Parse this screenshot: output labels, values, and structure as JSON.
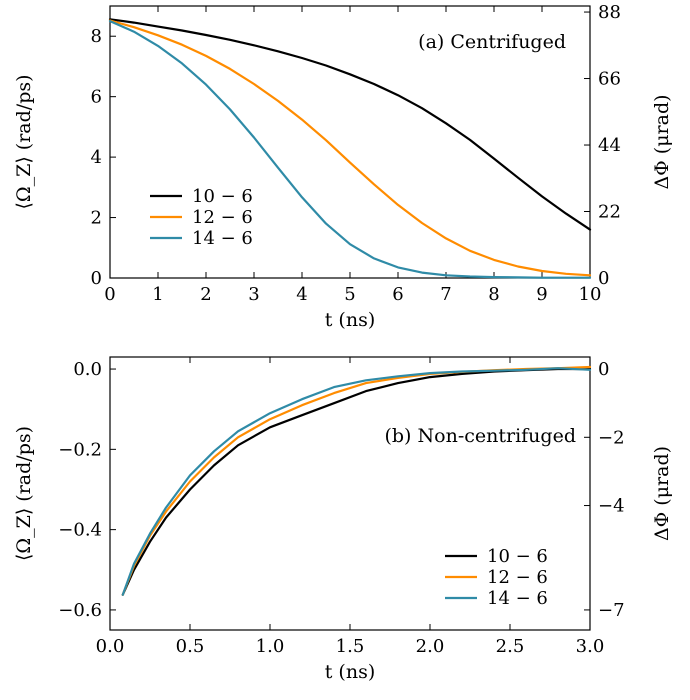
{
  "colors": {
    "s1": "#000000",
    "s2": "#ff8c00",
    "s3": "#2f8ba7"
  },
  "chart_data": [
    {
      "type": "line",
      "annotation": "(a) Centrifuged",
      "xlabel": "t (ns)",
      "ylabel": "⟨Ω_Z⟩ (rad/ps)",
      "y2label": "ΔΦ (μrad)",
      "xlim": [
        0,
        10
      ],
      "ylim": [
        0,
        9
      ],
      "xticks": [
        "0",
        "1",
        "2",
        "3",
        "4",
        "5",
        "6",
        "7",
        "8",
        "9",
        "10"
      ],
      "yticks": [
        "0",
        "2",
        "4",
        "6",
        "8"
      ],
      "y2ticks": [
        "0",
        "22",
        "44",
        "66",
        "88"
      ],
      "legend_position": "lower-left",
      "x": [
        0,
        0.5,
        1,
        1.5,
        2,
        2.5,
        3,
        3.5,
        4,
        4.5,
        5,
        5.5,
        6,
        6.5,
        7,
        7.5,
        8,
        8.5,
        9,
        9.5,
        10
      ],
      "series": [
        {
          "name": "10 − 6",
          "values": [
            8.56,
            8.45,
            8.32,
            8.19,
            8.04,
            7.88,
            7.7,
            7.5,
            7.28,
            7.03,
            6.74,
            6.42,
            6.05,
            5.62,
            5.12,
            4.57,
            3.95,
            3.32,
            2.7,
            2.13,
            1.6
          ]
        },
        {
          "name": "12 − 6",
          "values": [
            8.52,
            8.3,
            8.03,
            7.72,
            7.35,
            6.92,
            6.42,
            5.86,
            5.24,
            4.56,
            3.82,
            3.1,
            2.42,
            1.82,
            1.31,
            0.9,
            0.6,
            0.38,
            0.23,
            0.14,
            0.09
          ]
        },
        {
          "name": "14 − 6",
          "values": [
            8.5,
            8.15,
            7.68,
            7.1,
            6.4,
            5.58,
            4.65,
            3.65,
            2.67,
            1.8,
            1.12,
            0.65,
            0.35,
            0.18,
            0.09,
            0.05,
            0.03,
            0.02,
            0.01,
            0.01,
            0.01
          ]
        }
      ]
    },
    {
      "type": "line",
      "annotation": "(b) Non-centrifuged",
      "xlabel": "t (ns)",
      "ylabel": "⟨Ω_Z⟩ (rad/ps)",
      "y2label": "ΔΦ (μrad)",
      "xlim": [
        0,
        3
      ],
      "ylim": [
        -0.65,
        0.03
      ],
      "xticks": [
        "0.0",
        "0.5",
        "1.0",
        "1.5",
        "2.0",
        "2.5",
        "3.0"
      ],
      "yticks": [
        "0.0",
        "−0.2",
        "−0.4",
        "−0.6"
      ],
      "y2ticks": [
        "0",
        "−2",
        "−4",
        "−7"
      ],
      "legend_position": "lower-right",
      "x": [
        0.08,
        0.15,
        0.25,
        0.35,
        0.5,
        0.65,
        0.8,
        1.0,
        1.2,
        1.4,
        1.6,
        1.8,
        2.0,
        2.2,
        2.4,
        2.6,
        2.8,
        3.0
      ],
      "series": [
        {
          "name": "10 − 6",
          "values": [
            -0.562,
            -0.5,
            -0.43,
            -0.37,
            -0.3,
            -0.24,
            -0.19,
            -0.145,
            -0.115,
            -0.085,
            -0.055,
            -0.035,
            -0.02,
            -0.012,
            -0.006,
            -0.003,
            0.0,
            0.0
          ]
        },
        {
          "name": "12 − 6",
          "values": [
            -0.562,
            -0.49,
            -0.415,
            -0.355,
            -0.28,
            -0.22,
            -0.17,
            -0.125,
            -0.09,
            -0.06,
            -0.035,
            -0.022,
            -0.012,
            -0.007,
            -0.003,
            0.0,
            0.002,
            0.005
          ]
        },
        {
          "name": "14 − 6",
          "values": [
            -0.562,
            -0.485,
            -0.41,
            -0.345,
            -0.265,
            -0.205,
            -0.155,
            -0.11,
            -0.075,
            -0.045,
            -0.028,
            -0.018,
            -0.01,
            -0.006,
            -0.004,
            -0.002,
            0.002,
            -0.002
          ]
        }
      ]
    }
  ]
}
